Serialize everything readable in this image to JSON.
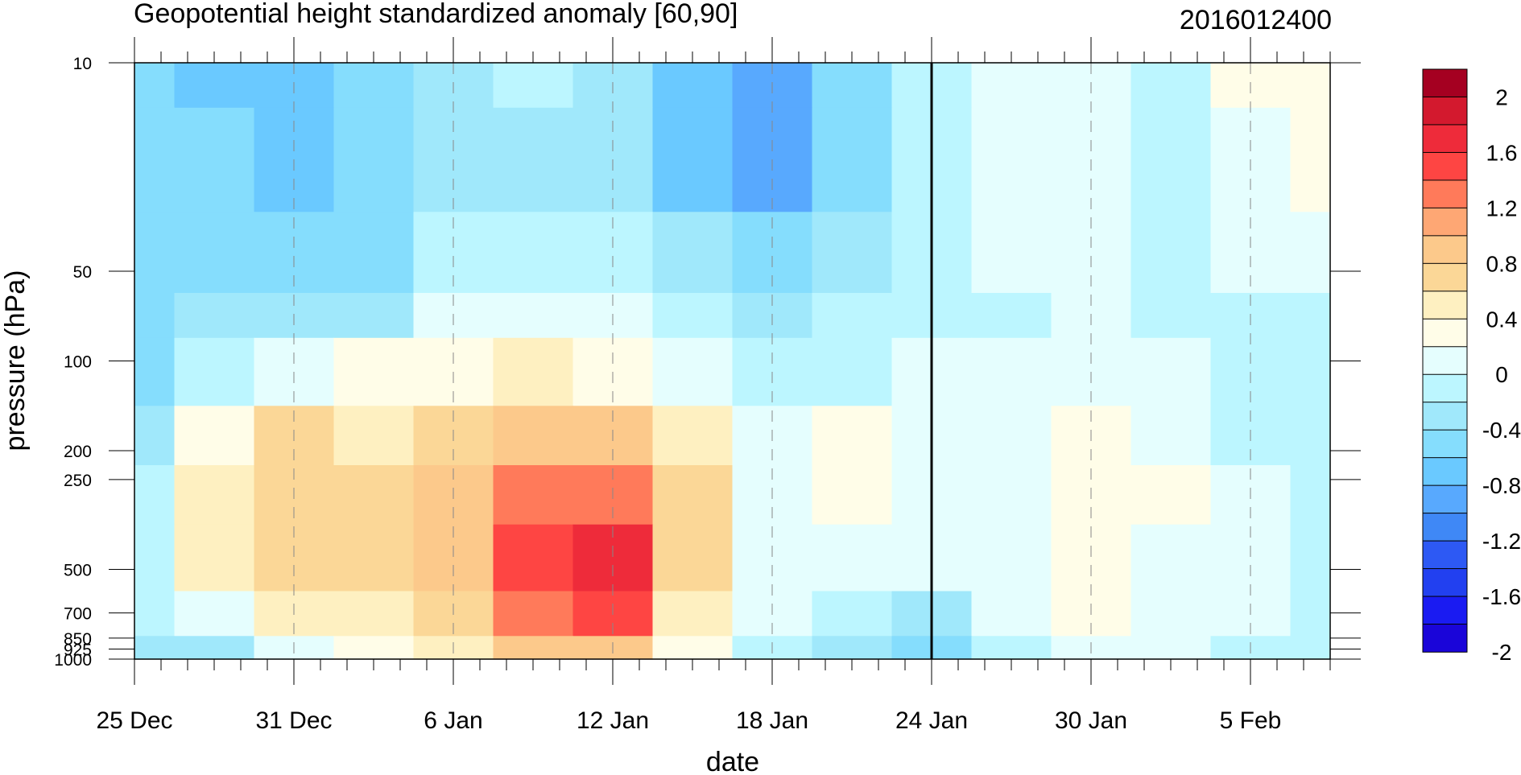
{
  "chart_data": {
    "type": "heatmap",
    "subtype": "filled contour (time-pressure cross section)",
    "title": "Geopotential height standardized anomaly [60,90]",
    "timestamp": "2016012400",
    "xlabel": "date",
    "ylabel": "pressure (hPa)",
    "x_ticks": [
      "25 Dec",
      "31 Dec",
      "6 Jan",
      "12 Jan",
      "18 Jan",
      "24 Jan",
      "30 Jan",
      "5 Feb"
    ],
    "x_tick_days": [
      0,
      6,
      12,
      18,
      24,
      30,
      36,
      42
    ],
    "x_range_days": [
      0,
      45
    ],
    "y_ticks": [
      10,
      50,
      100,
      200,
      250,
      500,
      700,
      850,
      925,
      1000
    ],
    "y_tick_labels": [
      "10",
      "50",
      "100",
      "200",
      "250",
      "500",
      "700",
      "850",
      "925",
      "1000"
    ],
    "y_scale": "log",
    "y_reversed": true,
    "ylim": [
      10,
      1000
    ],
    "vertical_line_at": "24 Jan",
    "grid": "dashed vertical lines at date ticks",
    "colorbar": {
      "labels": [
        "2",
        "1.6",
        "1.2",
        "0.8",
        "0.4",
        "0",
        "-0.4",
        "-0.8",
        "-1.2",
        "-1.6",
        "-2"
      ],
      "levels": [
        2.2,
        2,
        1.8,
        1.6,
        1.4,
        1.2,
        1.0,
        0.8,
        0.6,
        0.4,
        0.2,
        0,
        -0.2,
        -0.4,
        -0.6,
        -0.8,
        -1.0,
        -1.2,
        -1.4,
        -1.6,
        -1.8,
        -2,
        -2.2
      ],
      "colors": [
        "#a50021",
        "#d3192e",
        "#ee2b3a",
        "#fe4543",
        "#ff7a5a",
        "#fea774",
        "#fcc98b",
        "#fbd797",
        "#fef0c1",
        "#fffde8",
        "#e5fefe",
        "#bcf6ff",
        "#a0e8fb",
        "#85ddfd",
        "#6ac9ff",
        "#58a9fe",
        "#3f88f6",
        "#2d59f4",
        "#2240f0",
        "#1a1bf2",
        "#1a05d9"
      ]
    },
    "cells": {
      "x_days": [
        0,
        3,
        6,
        9,
        12,
        15,
        18,
        21,
        24,
        27,
        30,
        33,
        36,
        39,
        42,
        45
      ],
      "pressure": [
        10,
        20,
        50,
        70,
        100,
        200,
        250,
        500,
        700,
        1000
      ],
      "values": [
        [
          -0.5,
          -0.7,
          -0.8,
          -0.6,
          -0.4,
          -0.2,
          -0.3,
          -0.7,
          -1.0,
          -0.5,
          -0.1,
          0.1,
          0.1,
          -0.1,
          0.2,
          0.3
        ],
        [
          -0.5,
          -0.6,
          -0.7,
          -0.6,
          -0.4,
          -0.3,
          -0.4,
          -0.7,
          -0.9,
          -0.5,
          -0.1,
          0.1,
          0.1,
          -0.1,
          0.1,
          0.2
        ],
        [
          -0.6,
          -0.5,
          -0.5,
          -0.5,
          -0.2,
          -0.1,
          -0.2,
          -0.4,
          -0.5,
          -0.3,
          -0.1,
          0.0,
          0.0,
          -0.1,
          0.0,
          0.0
        ],
        [
          -0.5,
          -0.3,
          -0.3,
          -0.3,
          0.0,
          0.1,
          0.0,
          -0.2,
          -0.3,
          -0.2,
          -0.1,
          -0.1,
          0.1,
          -0.1,
          -0.1,
          -0.1
        ],
        [
          -0.5,
          -0.2,
          0.1,
          0.2,
          0.3,
          0.4,
          0.3,
          0.1,
          -0.1,
          -0.1,
          0.0,
          0.0,
          0.1,
          0.0,
          -0.1,
          -0.1
        ],
        [
          -0.3,
          0.3,
          0.6,
          0.5,
          0.7,
          0.9,
          0.9,
          0.5,
          0.1,
          0.2,
          0.1,
          0.1,
          0.2,
          0.1,
          -0.1,
          -0.1
        ],
        [
          -0.2,
          0.5,
          0.7,
          0.6,
          0.8,
          1.2,
          1.2,
          0.6,
          0.1,
          0.2,
          0.1,
          0.1,
          0.3,
          0.2,
          0.0,
          -0.1
        ],
        [
          -0.1,
          0.4,
          0.6,
          0.7,
          0.9,
          1.4,
          1.7,
          0.7,
          0.1,
          0.1,
          0.0,
          0.0,
          0.2,
          0.1,
          0.0,
          -0.1
        ],
        [
          -0.2,
          0.1,
          0.4,
          0.5,
          0.7,
          1.2,
          1.5,
          0.5,
          0.1,
          -0.1,
          -0.3,
          0.0,
          0.2,
          0.1,
          0.0,
          -0.1
        ],
        [
          -0.4,
          -0.3,
          0.0,
          0.3,
          0.5,
          0.8,
          0.8,
          0.2,
          -0.1,
          -0.4,
          -0.6,
          -0.1,
          0.1,
          0.0,
          -0.1,
          -0.1
        ]
      ]
    }
  }
}
